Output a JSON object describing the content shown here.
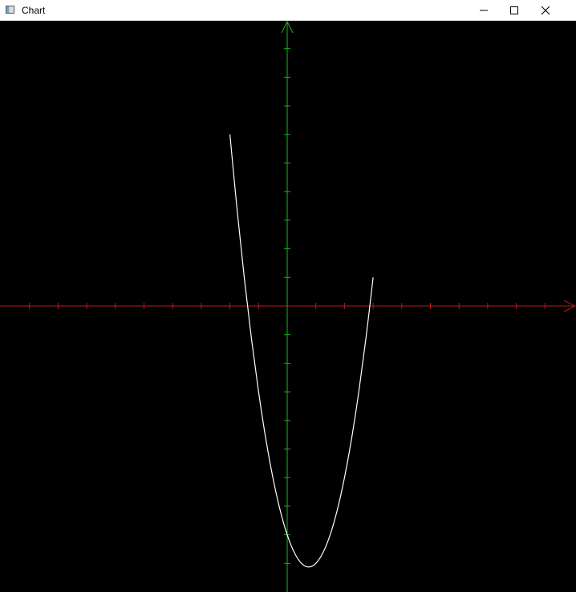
{
  "window": {
    "title": "Chart"
  },
  "chart_data": {
    "type": "line",
    "x": [
      -2,
      -1.75,
      -1.5,
      -1.25,
      -1,
      -0.75,
      -0.5,
      -0.25,
      0,
      0.25,
      0.5,
      0.75,
      1,
      1.25,
      1.5,
      1.75,
      2,
      2.25,
      2.5,
      2.75,
      3
    ],
    "series": [
      {
        "color": "#ffffff",
        "values": [
          6,
          3.375,
          1,
          -1.125,
          -3,
          -4.625,
          -6,
          -7.125,
          -8,
          -8.625,
          -9,
          -9.125,
          -9,
          -8.625,
          -8,
          -7.125,
          -6,
          -4.625,
          -3,
          -1.125,
          1
        ]
      }
    ],
    "xlim": [
      -10,
      10
    ],
    "ylim": [
      -10,
      10
    ],
    "xticks": [
      -9,
      -8,
      -7,
      -6,
      -5,
      -4,
      -3,
      -2,
      -1,
      1,
      2,
      3,
      4,
      5,
      6,
      7,
      8,
      9
    ],
    "yticks": [
      -9,
      -8,
      -7,
      -6,
      -5,
      -4,
      -3,
      -2,
      -1,
      1,
      2,
      3,
      4,
      5,
      6,
      7,
      8,
      9
    ],
    "x_axis_color": "#b01c1c",
    "y_axis_color": "#22b022",
    "grid": false
  }
}
